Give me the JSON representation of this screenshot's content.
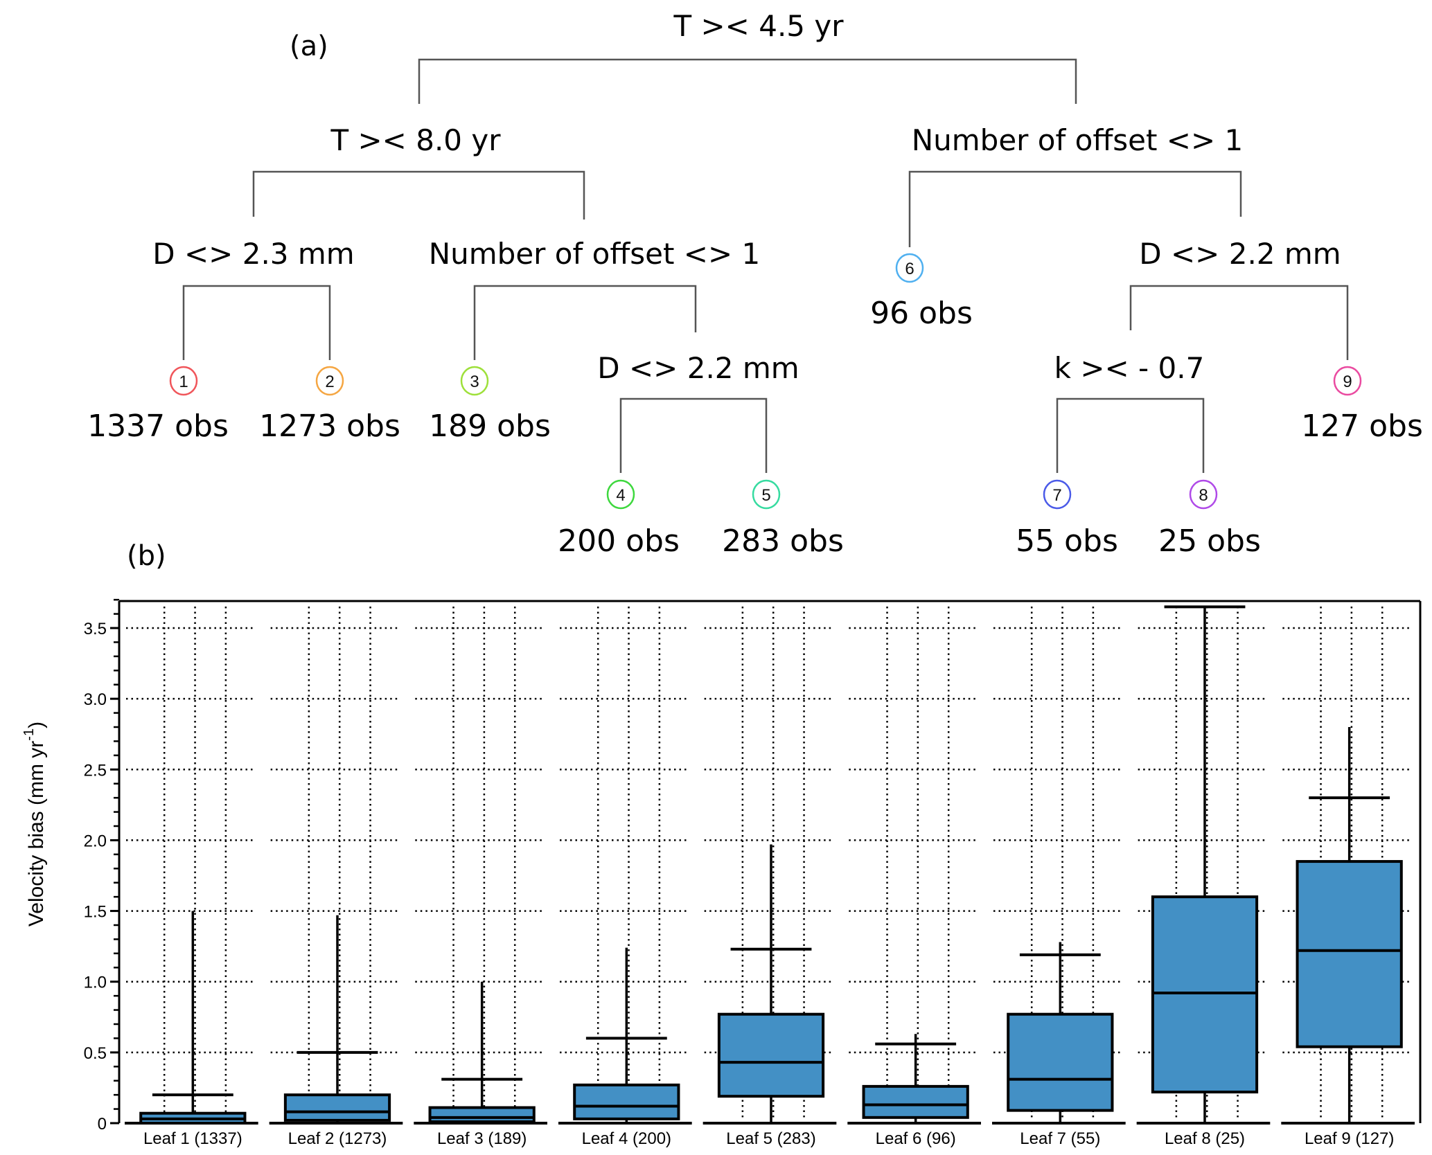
{
  "panels": {
    "a": "(a)",
    "b": "(b)"
  },
  "tree": {
    "splits": {
      "root": "T >< 4.5 yr",
      "left": "T >< 8.0 yr",
      "right": "Number of offset <> 1",
      "left_left": "D <> 2.3 mm",
      "left_right": "Number of offset <> 1",
      "left_right_right": "D <> 2.2 mm",
      "right_right": "D <> 2.2 mm",
      "right_right_left": "k >< - 0.7"
    },
    "leaves": [
      {
        "id": "1",
        "obs": "1337 obs",
        "color": "#f0555a"
      },
      {
        "id": "2",
        "obs": "1273 obs",
        "color": "#f5a642"
      },
      {
        "id": "3",
        "obs": "189 obs",
        "color": "#9ee03a"
      },
      {
        "id": "4",
        "obs": "200 obs",
        "color": "#3ed83e"
      },
      {
        "id": "5",
        "obs": "283 obs",
        "color": "#36dba0"
      },
      {
        "id": "6",
        "obs": "96 obs",
        "color": "#4fb0f0"
      },
      {
        "id": "7",
        "obs": "55 obs",
        "color": "#4a5ae8"
      },
      {
        "id": "8",
        "obs": "25 obs",
        "color": "#b04ae8"
      },
      {
        "id": "9",
        "obs": "127 obs",
        "color": "#ea4aa0"
      }
    ]
  },
  "chart_data": {
    "type": "box",
    "title": "",
    "xlabel": "",
    "ylabel": "Velocity bias (mm yr",
    "ylabel_superscript": "-1",
    "ylabel_close": ")",
    "ylim": [
      0,
      3.7
    ],
    "yticks": [
      0,
      0.5,
      1.0,
      1.5,
      2.0,
      2.5,
      3.0,
      3.5
    ],
    "ytick_labels": [
      "0",
      "0.5",
      "1.0",
      "1.5",
      "2.0",
      "2.5",
      "3.0",
      "3.5"
    ],
    "minor_tick_step": 0.1,
    "grid": "dotted",
    "box_color": "#4390c5",
    "categories": [
      "Leaf 1 (1337)",
      "Leaf 2 (1273)",
      "Leaf 3 (189)",
      "Leaf 4 (200)",
      "Leaf 5 (283)",
      "Leaf 6 (96)",
      "Leaf 7 (55)",
      "Leaf 8 (25)",
      "Leaf 9 (127)"
    ],
    "series": [
      {
        "name": "Leaf 1",
        "whisker_low": 0,
        "q1": 0.0,
        "median": 0.03,
        "q3": 0.07,
        "whisker_high": 1.5,
        "mark": 0.2
      },
      {
        "name": "Leaf 2",
        "whisker_low": 0,
        "q1": 0.02,
        "median": 0.08,
        "q3": 0.2,
        "whisker_high": 1.47,
        "mark": 0.5
      },
      {
        "name": "Leaf 3",
        "whisker_low": 0,
        "q1": 0.01,
        "median": 0.04,
        "q3": 0.11,
        "whisker_high": 1.0,
        "mark": 0.31
      },
      {
        "name": "Leaf 4",
        "whisker_low": 0,
        "q1": 0.03,
        "median": 0.12,
        "q3": 0.27,
        "whisker_high": 1.24,
        "mark": 0.6
      },
      {
        "name": "Leaf 5",
        "whisker_low": 0,
        "q1": 0.19,
        "median": 0.43,
        "q3": 0.77,
        "whisker_high": 1.97,
        "mark": 1.23
      },
      {
        "name": "Leaf 6",
        "whisker_low": 0,
        "q1": 0.04,
        "median": 0.13,
        "q3": 0.26,
        "whisker_high": 0.63,
        "mark": 0.56
      },
      {
        "name": "Leaf 7",
        "whisker_low": 0,
        "q1": 0.09,
        "median": 0.31,
        "q3": 0.77,
        "whisker_high": 1.28,
        "mark": 1.19
      },
      {
        "name": "Leaf 8",
        "whisker_low": 0,
        "q1": 0.22,
        "median": 0.92,
        "q3": 1.6,
        "whisker_high": 3.65,
        "mark": 3.65
      },
      {
        "name": "Leaf 9",
        "whisker_low": 0,
        "q1": 0.54,
        "median": 1.22,
        "q3": 1.85,
        "whisker_high": 2.8,
        "mark": 2.3
      }
    ]
  }
}
